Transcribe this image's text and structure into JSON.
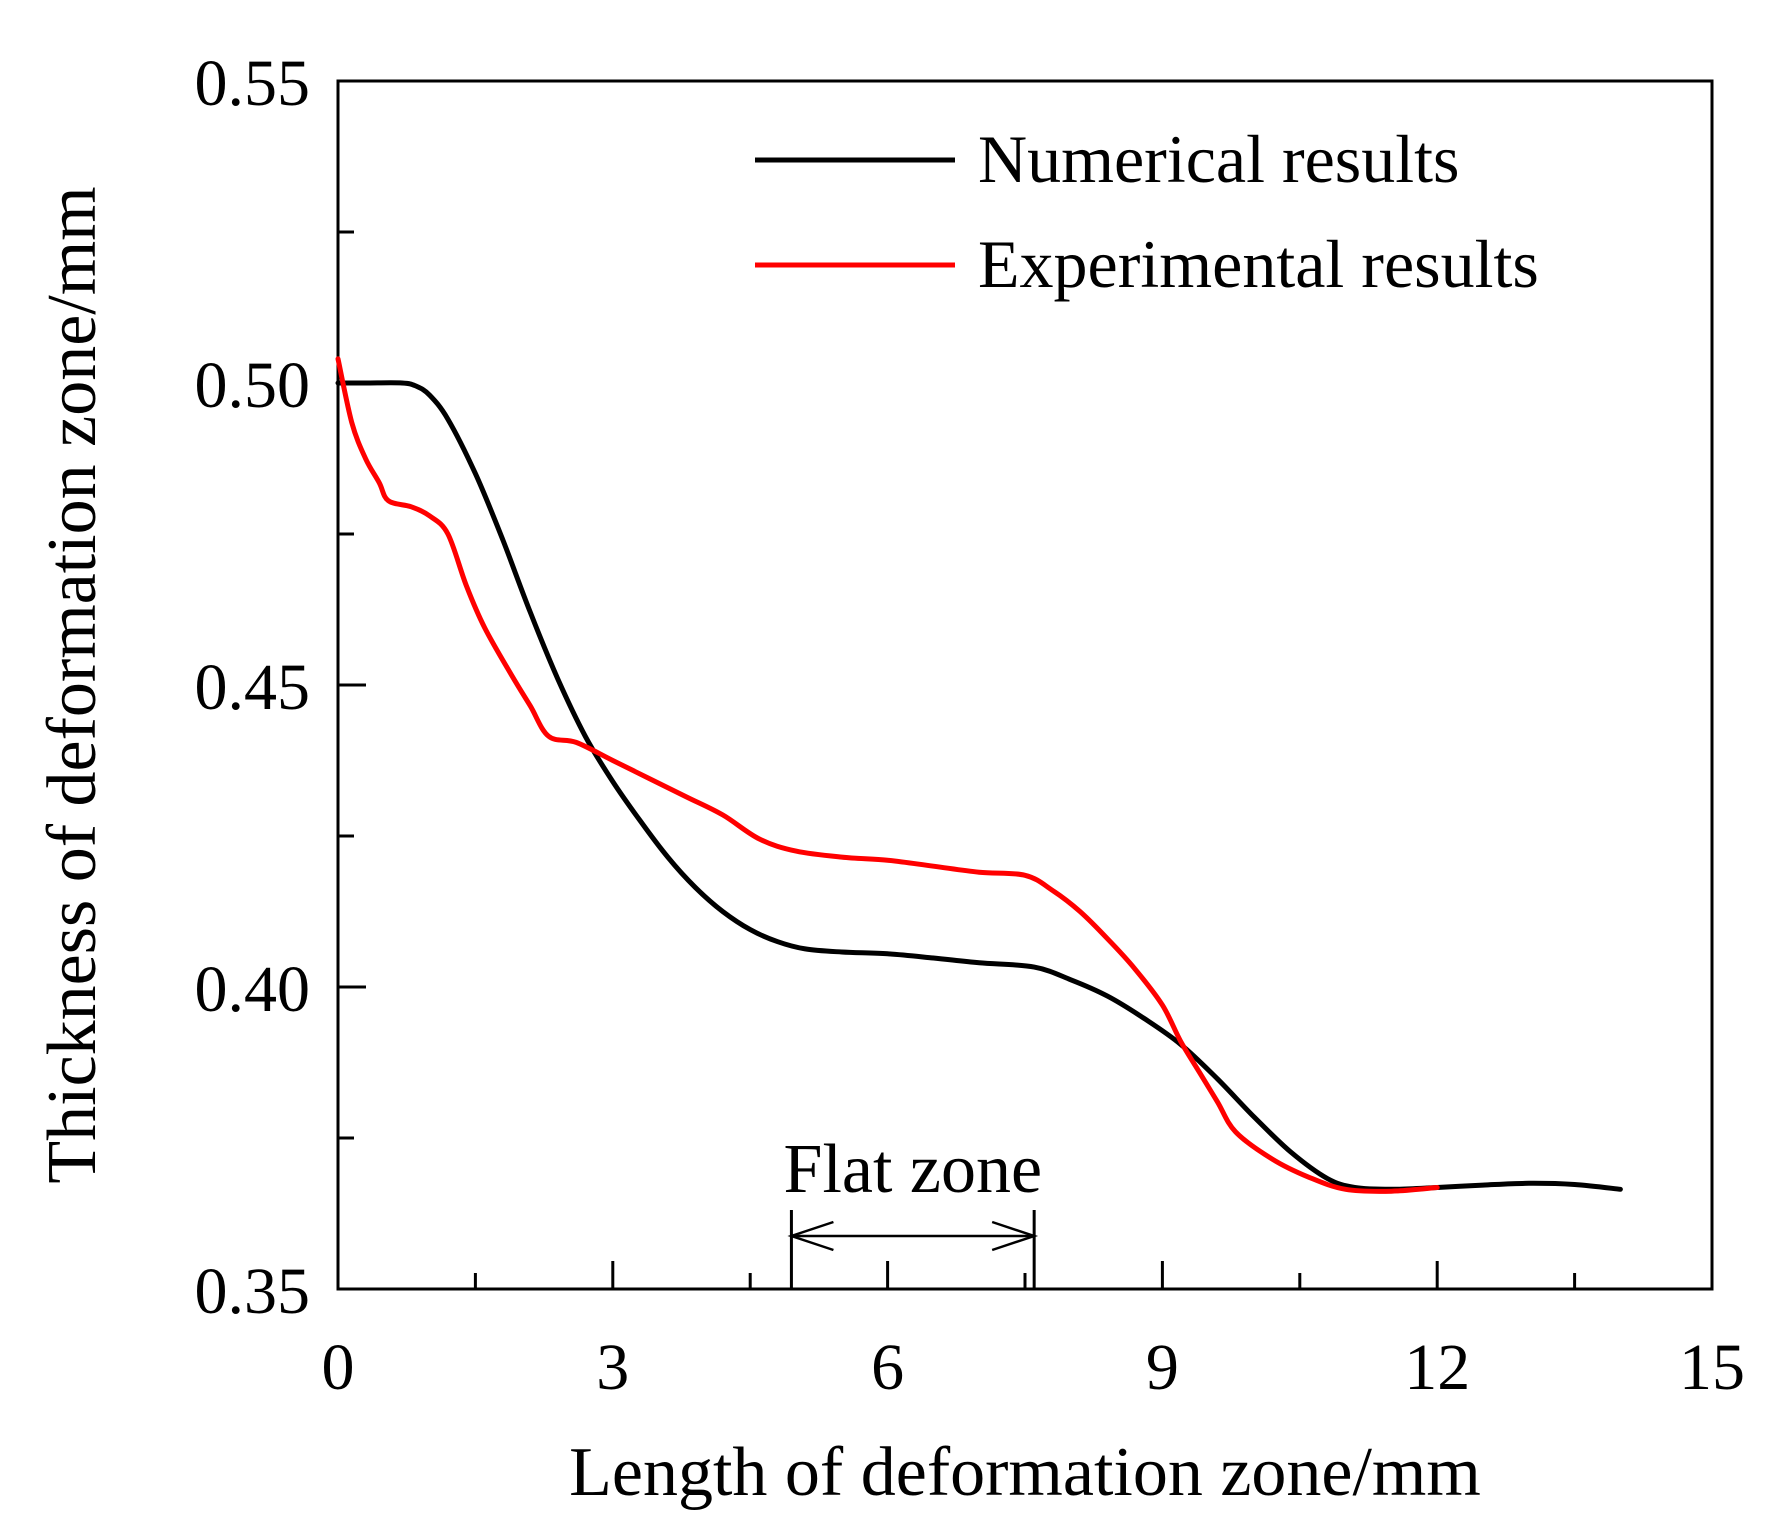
{
  "chart_data": {
    "type": "line",
    "title": "",
    "xlabel": "Length of deformation zone/mm",
    "ylabel": "Thickness of deformation zone/mm",
    "xlim": [
      0,
      15
    ],
    "ylim": [
      0.35,
      0.55
    ],
    "xticks": [
      "0",
      "3",
      "6",
      "9",
      "12",
      "15"
    ],
    "xtick_values": [
      0,
      3,
      6,
      9,
      12,
      15
    ],
    "xminor_values": [
      1.5,
      4.5,
      7.5,
      10.5,
      13.5
    ],
    "yticks": [
      "0.35",
      "0.40",
      "0.45",
      "0.50",
      "0.55"
    ],
    "ytick_values": [
      0.35,
      0.4,
      0.45,
      0.5,
      0.55
    ],
    "yminor_values": [
      0.375,
      0.425,
      0.475,
      0.525
    ],
    "grid": false,
    "legend_position": "top-right",
    "series": [
      {
        "name": "Numerical results",
        "color": "#000000",
        "x": [
          0,
          0.3,
          0.7,
          0.85,
          1.0,
          1.2,
          1.5,
          1.8,
          2.1,
          2.4,
          2.7,
          3.0,
          3.3,
          3.6,
          3.9,
          4.2,
          4.5,
          4.8,
          5.1,
          5.5,
          6.0,
          6.5,
          7.0,
          7.6,
          8.0,
          8.4,
          8.8,
          9.2,
          9.6,
          10.0,
          10.4,
          10.8,
          11.1,
          11.5,
          12.0,
          12.5,
          13.0,
          13.5,
          14.0
        ],
        "y": [
          0.5,
          0.5,
          0.5,
          0.4995,
          0.498,
          0.494,
          0.485,
          0.474,
          0.462,
          0.451,
          0.4415,
          0.434,
          0.4275,
          0.4215,
          0.4165,
          0.4125,
          0.4095,
          0.4075,
          0.4063,
          0.4058,
          0.4055,
          0.4048,
          0.404,
          0.4033,
          0.4012,
          0.3985,
          0.3948,
          0.3905,
          0.3848,
          0.3785,
          0.3727,
          0.3683,
          0.3668,
          0.3665,
          0.3668,
          0.3672,
          0.3675,
          0.3673,
          0.3665
        ]
      },
      {
        "name": "Experimental results",
        "color": "#ff0000",
        "x": [
          0,
          0.15,
          0.3,
          0.45,
          0.55,
          0.8,
          1.0,
          1.2,
          1.4,
          1.6,
          1.9,
          2.1,
          2.3,
          2.6,
          3.0,
          3.4,
          3.8,
          4.2,
          4.6,
          5.0,
          5.5,
          6.0,
          6.5,
          7.0,
          7.5,
          7.8,
          8.1,
          8.4,
          8.7,
          9.0,
          9.2,
          9.4,
          9.6,
          9.8,
          10.2,
          10.6,
          11.0,
          11.5,
          12.0
        ],
        "y": [
          0.504,
          0.4935,
          0.4875,
          0.4835,
          0.4805,
          0.4795,
          0.478,
          0.475,
          0.4665,
          0.4595,
          0.4515,
          0.4465,
          0.4415,
          0.4405,
          0.4375,
          0.4345,
          0.4315,
          0.4285,
          0.4245,
          0.4225,
          0.4215,
          0.421,
          0.42,
          0.419,
          0.4185,
          0.416,
          0.4125,
          0.408,
          0.403,
          0.397,
          0.391,
          0.386,
          0.381,
          0.376,
          0.3715,
          0.3685,
          0.3665,
          0.3662,
          0.3668
        ]
      }
    ],
    "annotations": [
      {
        "text": "Flat zone",
        "x_start": 4.95,
        "x_end": 7.6
      }
    ]
  }
}
